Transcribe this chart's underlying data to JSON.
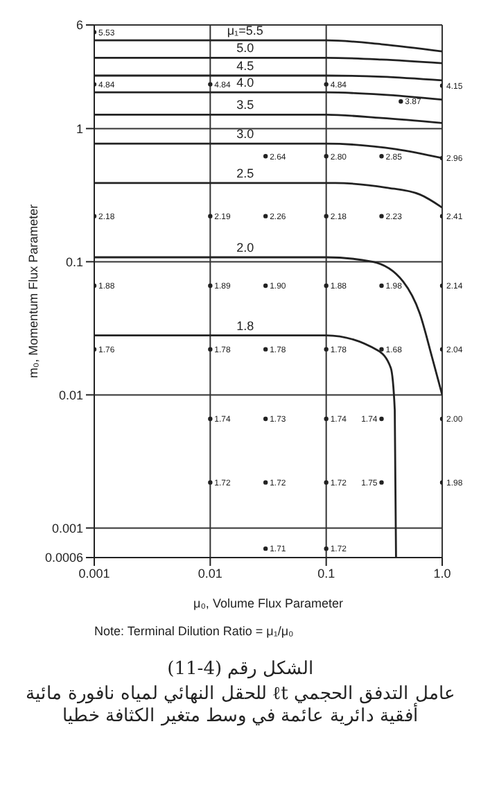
{
  "chart_data": {
    "type": "line",
    "xlabel": "μ₀, Volume Flux Parameter",
    "ylabel": "m₀, Momentum Flux Parameter",
    "log": "xy",
    "grid": true,
    "legend": false,
    "marker": "none",
    "line_style": "solid",
    "xlim": [
      0.001,
      1
    ],
    "xticks": [
      0.001,
      0.01,
      0.1,
      {
        "value": 1,
        "label": "1.0"
      }
    ],
    "ylim": [
      0.0006,
      6
    ],
    "yticks": [
      {
        "value": 0.0006,
        "label": "0.0006"
      },
      0.001,
      0.01,
      0.1,
      1,
      6
    ],
    "series": [
      {
        "name": "μ₁=5.5",
        "color": "#222222",
        "x": [
          0.001,
          0.02,
          0.1,
          0.3,
          1
        ],
        "values": [
          4.6,
          4.6,
          4.6,
          4.3,
          3.8
        ]
      },
      {
        "name": "5.0",
        "color": "#222222",
        "x": [
          0.001,
          0.02,
          0.1,
          0.3,
          1
        ],
        "values": [
          3.4,
          3.4,
          3.4,
          3.3,
          3.1
        ]
      },
      {
        "name": "4.5",
        "color": "#222222",
        "x": [
          0.001,
          0.02,
          0.1,
          0.3,
          1
        ],
        "values": [
          2.5,
          2.5,
          2.5,
          2.45,
          2.3
        ]
      },
      {
        "name": "4.0",
        "color": "#222222",
        "x": [
          0.001,
          0.02,
          0.1,
          0.3,
          1
        ],
        "values": [
          1.87,
          1.87,
          1.87,
          1.8,
          1.65
        ]
      },
      {
        "name": "3.5",
        "color": "#222222",
        "x": [
          0.001,
          0.02,
          0.1,
          0.3,
          1
        ],
        "values": [
          1.27,
          1.27,
          1.27,
          1.2,
          1.1
        ]
      },
      {
        "name": "3.0",
        "color": "#222222",
        "x": [
          0.001,
          0.02,
          0.1,
          0.4,
          1
        ],
        "values": [
          0.77,
          0.77,
          0.77,
          0.7,
          0.6
        ]
      },
      {
        "name": "2.5",
        "color": "#222222",
        "x": [
          0.001,
          0.02,
          0.12,
          0.33,
          0.64,
          1
        ],
        "values": [
          0.39,
          0.39,
          0.39,
          0.36,
          0.32,
          0.255
        ]
      },
      {
        "name": "2.0",
        "color": "#222222",
        "x": [
          0.001,
          0.02,
          0.1,
          0.25,
          0.46,
          0.64,
          0.82,
          1
        ],
        "values": [
          0.108,
          0.108,
          0.108,
          0.1,
          0.071,
          0.041,
          0.019,
          0.01
        ]
      },
      {
        "name": "1.8",
        "color": "#222222",
        "x": [
          0.001,
          0.02,
          0.1,
          0.28,
          0.36,
          0.39,
          0.4
        ],
        "values": [
          0.028,
          0.028,
          0.028,
          0.0215,
          0.016,
          0.0077,
          0.0006
        ]
      },
      {
        "type": "scatter",
        "color": "#222222",
        "x": [
          0.001,
          0.001,
          0.01,
          0.1,
          1,
          0.44,
          0.03,
          0.1,
          0.3,
          1,
          0.001,
          0.01,
          0.03,
          0.1,
          0.3,
          1,
          0.001,
          0.01,
          0.03,
          0.1,
          0.3,
          1,
          0.001,
          0.01,
          0.03,
          0.1,
          0.3,
          1,
          0.01,
          0.03,
          0.1,
          0.3,
          1,
          0.01,
          0.03,
          0.1,
          0.3,
          1,
          0.03,
          0.1
        ],
        "values": [
          5.3,
          2.15,
          2.15,
          2.15,
          2.1,
          1.6,
          0.62,
          0.62,
          0.62,
          0.6,
          0.22,
          0.22,
          0.22,
          0.22,
          0.22,
          0.22,
          0.066,
          0.066,
          0.066,
          0.066,
          0.066,
          0.066,
          0.022,
          0.022,
          0.022,
          0.022,
          0.022,
          0.022,
          0.0066,
          0.0066,
          0.0066,
          0.0066,
          0.0066,
          0.0022,
          0.0022,
          0.0022,
          0.0022,
          0.0022,
          0.0007,
          0.0007
        ]
      }
    ],
    "annotations": [
      {
        "text": "5.53",
        "x": 0.001,
        "y": 5.3
      },
      {
        "text": "4.84",
        "x": 0.001,
        "y": 2.15
      },
      {
        "text": "4.84",
        "x": 0.01,
        "y": 2.15
      },
      {
        "text": "4.84",
        "x": 0.1,
        "y": 2.15
      },
      {
        "text": "4.15",
        "x": 1,
        "y": 2.1
      },
      {
        "text": "3.87",
        "x": 0.44,
        "y": 1.6
      },
      {
        "text": "2.64",
        "x": 0.03,
        "y": 0.62
      },
      {
        "text": "2.80",
        "x": 0.1,
        "y": 0.62
      },
      {
        "text": "2.85",
        "x": 0.3,
        "y": 0.62
      },
      {
        "text": "2.96",
        "x": 1,
        "y": 0.6
      },
      {
        "text": "2.18",
        "x": 0.001,
        "y": 0.22
      },
      {
        "text": "2.19",
        "x": 0.01,
        "y": 0.22
      },
      {
        "text": "2.26",
        "x": 0.03,
        "y": 0.22
      },
      {
        "text": "2.18",
        "x": 0.1,
        "y": 0.22
      },
      {
        "text": "2.23",
        "x": 0.3,
        "y": 0.22
      },
      {
        "text": "2.41",
        "x": 1,
        "y": 0.22
      },
      {
        "text": "1.88",
        "x": 0.001,
        "y": 0.066
      },
      {
        "text": "1.89",
        "x": 0.01,
        "y": 0.066
      },
      {
        "text": "1.90",
        "x": 0.03,
        "y": 0.066
      },
      {
        "text": "1.88",
        "x": 0.1,
        "y": 0.066
      },
      {
        "text": "1.98",
        "x": 0.3,
        "y": 0.066
      },
      {
        "text": "2.14",
        "x": 1,
        "y": 0.066
      },
      {
        "text": "1.76",
        "x": 0.001,
        "y": 0.022
      },
      {
        "text": "1.78",
        "x": 0.01,
        "y": 0.022
      },
      {
        "text": "1.78",
        "x": 0.03,
        "y": 0.022
      },
      {
        "text": "1.78",
        "x": 0.1,
        "y": 0.022
      },
      {
        "text": "1.68",
        "x": 0.3,
        "y": 0.022
      },
      {
        "text": "2.04",
        "x": 1,
        "y": 0.022
      },
      {
        "text": "1.74",
        "x": 0.01,
        "y": 0.0066
      },
      {
        "text": "1.73",
        "x": 0.03,
        "y": 0.0066
      },
      {
        "text": "1.74",
        "x": 0.1,
        "y": 0.0066
      },
      {
        "text": "1.74",
        "x": 0.3,
        "y": 0.0066
      },
      {
        "text": "2.00",
        "x": 1,
        "y": 0.0066
      },
      {
        "text": "1.72",
        "x": 0.01,
        "y": 0.0022
      },
      {
        "text": "1.72",
        "x": 0.03,
        "y": 0.0022
      },
      {
        "text": "1.72",
        "x": 0.1,
        "y": 0.0022
      },
      {
        "text": "1.75",
        "x": 0.3,
        "y": 0.0022
      },
      {
        "text": "1.98",
        "x": 1,
        "y": 0.0022
      },
      {
        "text": "1.71",
        "x": 0.03,
        "y": 0.0007
      },
      {
        "text": "1.72",
        "x": 0.1,
        "y": 0.0007
      },
      "Note: Terminal Dilution Ratio = μ₁/μ₀",
      "الشكل رقم (4-11)",
      "عامل التدفق الحجمي ℓt للحقل النهائي لمياه نافورة مائية أفقية دائرية عائمة في وسط متغير الكثافة خطيا"
    ]
  }
}
